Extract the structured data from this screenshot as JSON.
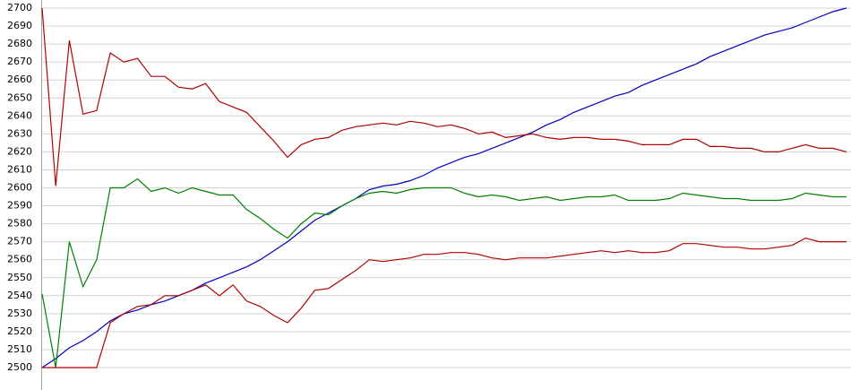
{
  "chart_data": {
    "type": "line",
    "categories": [
      null,
      null,
      null,
      null,
      null,
      null,
      null,
      null,
      null,
      null,
      null,
      null,
      null,
      null,
      null,
      null,
      null,
      null,
      null,
      null,
      null,
      null,
      null,
      null,
      null,
      null,
      null,
      null,
      null,
      null,
      null,
      null,
      null,
      null,
      null,
      null,
      null,
      null,
      null,
      null,
      null,
      null,
      null,
      null,
      null,
      null,
      null,
      null,
      null,
      null,
      null,
      null,
      null,
      null,
      null,
      null,
      null,
      null,
      null,
      null
    ],
    "series": [
      {
        "color": "#0000c0",
        "values": [
          2500,
          2505,
          2511,
          2515,
          2520,
          2526,
          2530,
          2532,
          2535,
          2537,
          2540,
          2543,
          2547,
          2550,
          2553,
          2556,
          2560,
          2565,
          2570,
          2576,
          2582,
          2586,
          2590,
          2594,
          2599,
          2601,
          2602,
          2604,
          2607,
          2611,
          2614,
          2617,
          2619,
          2622,
          2625,
          2628,
          2631,
          2635,
          2638,
          2642,
          2645,
          2648,
          2651,
          2653,
          2657,
          2660,
          2663,
          2666,
          2669,
          2673,
          2676,
          2679,
          2682,
          2685,
          2687,
          2689,
          2692,
          2695,
          2698,
          2700
        ]
      },
      {
        "color": "#b00000",
        "values": [
          2700,
          2601,
          2682,
          2641,
          2643,
          2675,
          2670,
          2672,
          2662,
          2662,
          2656,
          2655,
          2658,
          2648,
          2645,
          2642,
          2634,
          2626,
          2617,
          2624,
          2627,
          2628,
          2632,
          2634,
          2635,
          2636,
          2635,
          2637,
          2636,
          2634,
          2635,
          2633,
          2630,
          2631,
          2628,
          2629,
          2630,
          2628,
          2627,
          2628,
          2628,
          2627,
          2627,
          2626,
          2624,
          2624,
          2624,
          2627,
          2627,
          2623,
          2623,
          2622,
          2622,
          2620,
          2620,
          2622,
          2624,
          2622,
          2622,
          2620
        ]
      },
      {
        "color": "#008000",
        "values": [
          2541,
          2500,
          2570,
          2545,
          2560,
          2600,
          2600,
          2605,
          2598,
          2600,
          2597,
          2600,
          2598,
          2596,
          2596,
          2588,
          2583,
          2577,
          2572,
          2580,
          2586,
          2585,
          2590,
          2594,
          2597,
          2598,
          2597,
          2599,
          2600,
          2600,
          2600,
          2597,
          2595,
          2596,
          2595,
          2593,
          2594,
          2595,
          2593,
          2594,
          2595,
          2595,
          2596,
          2593,
          2593,
          2593,
          2594,
          2597,
          2596,
          2595,
          2594,
          2594,
          2593,
          2593,
          2593,
          2594,
          2597,
          2596,
          2595,
          2595
        ]
      },
      {
        "color": "#b00000",
        "values": [
          2500,
          2500,
          2500,
          2500,
          2500,
          2525,
          2530,
          2534,
          2535,
          2540,
          2540,
          2543,
          2546,
          2540,
          2546,
          2537,
          2534,
          2529,
          2525,
          2533,
          2543,
          2544,
          2549,
          2554,
          2560,
          2559,
          2560,
          2561,
          2563,
          2563,
          2564,
          2564,
          2563,
          2561,
          2560,
          2561,
          2561,
          2561,
          2562,
          2563,
          2564,
          2565,
          2564,
          2565,
          2564,
          2564,
          2565,
          2569,
          2569,
          2568,
          2567,
          2567,
          2566,
          2566,
          2567,
          2568,
          2572,
          2570,
          2570,
          2570
        ]
      }
    ],
    "ylim": [
      2500,
      2700
    ],
    "yticks": [
      2500,
      2510,
      2520,
      2530,
      2540,
      2550,
      2560,
      2570,
      2580,
      2590,
      2600,
      2610,
      2620,
      2630,
      2640,
      2650,
      2660,
      2670,
      2680,
      2690,
      2700
    ],
    "grid": true
  }
}
